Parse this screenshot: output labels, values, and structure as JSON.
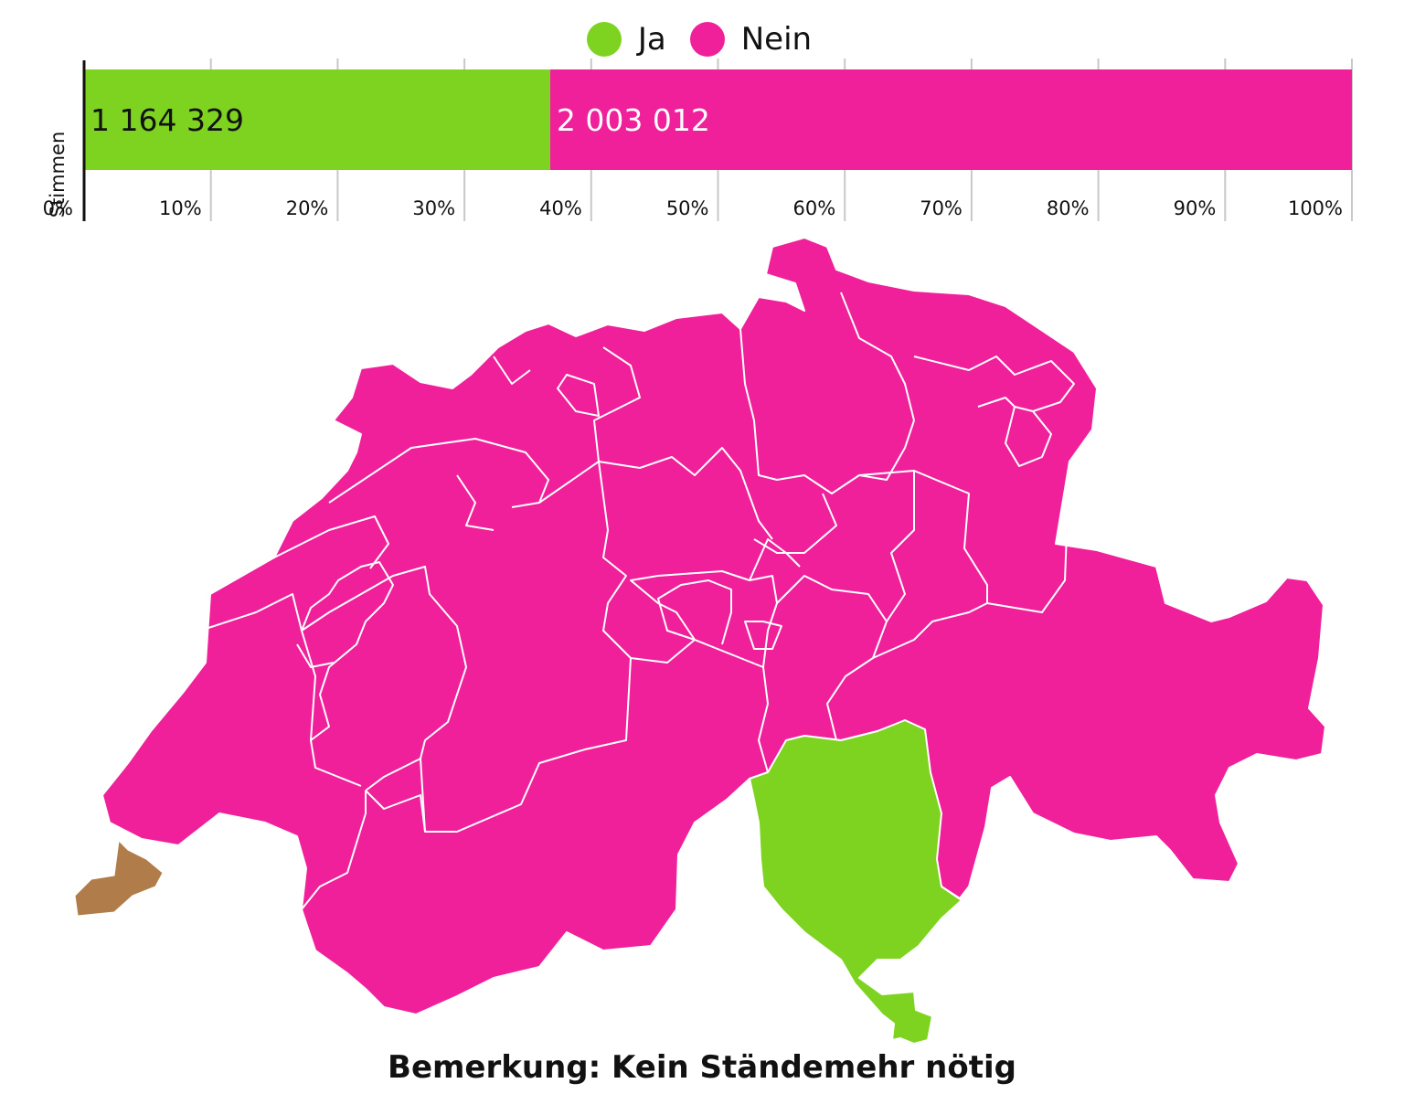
{
  "legend": [
    {
      "label": "Ja",
      "color": "#7ed321"
    },
    {
      "label": "Nein",
      "color": "#f0209a"
    }
  ],
  "chart_data": {
    "type": "bar",
    "orientation": "horizontal-stacked",
    "ylabel": "Stimmen",
    "xlim": [
      0,
      100
    ],
    "xticks": [
      "0%",
      "10%",
      "20%",
      "30%",
      "40%",
      "50%",
      "60%",
      "70%",
      "80%",
      "90%",
      "100%"
    ],
    "series": [
      {
        "name": "Ja",
        "value": 1164329,
        "label": "1 164 329",
        "color": "#7ed321"
      },
      {
        "name": "Nein",
        "value": 2003012,
        "label": "2 003 012",
        "color": "#f0209a"
      }
    ],
    "grid": true,
    "legend_position": "top-center"
  },
  "map": {
    "colors": {
      "ja": "#7ed321",
      "nein": "#f0209a",
      "other": "#b07d4a",
      "border": "#ffffff"
    }
  },
  "note": "Bemerkung: Kein Ständemehr nötig"
}
